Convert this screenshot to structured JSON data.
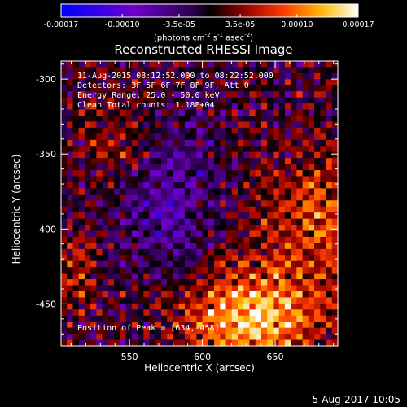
{
  "chart_data": {
    "type": "heatmap",
    "title": "Reconstructed RHESSI Image",
    "xlabel": "Heliocentric X (arcsec)",
    "ylabel": "Heliocentric Y (arcsec)",
    "xlim": [
      503,
      693
    ],
    "ylim": [
      -478,
      -288
    ],
    "x_ticks": [
      "550",
      "600",
      "650"
    ],
    "x_tick_values": [
      550,
      600,
      650
    ],
    "y_ticks": [
      "-300",
      "-350",
      "-400",
      "-450"
    ],
    "y_tick_values": [
      -300,
      -350,
      -400,
      -450
    ],
    "colorbar": {
      "ticks": [
        "-0.00017",
        "-0.00010",
        "-3.5e-05",
        "3.5e-05",
        "0.00010",
        "0.00017"
      ],
      "tick_values": [
        -0.00017,
        -0.0001,
        -3.5e-05,
        3.5e-05,
        0.0001,
        0.00017
      ],
      "range": [
        -0.00017,
        0.00017
      ],
      "units_prefix": "(photons cm",
      "units_exp1": "-2",
      "units_mid1": " s",
      "units_exp2": "-1",
      "units_mid2": " asec",
      "units_exp3": "-2",
      "units_suffix": ")"
    },
    "annotations": {
      "time_range": "11-Aug-2015 08:12:52.000 to 08:22:52.000",
      "detectors": "Detectors: 3F 5F 6F 7F 8F 9F, Att 0",
      "energy": "Energy Range: 25.0 - 50.0 keV",
      "clean": "Clean     Total counts: 1.18E+04",
      "peak": "Position of Peak = [634,-458]"
    },
    "peak": [
      634,
      -458
    ]
  },
  "footer": {
    "date": "5-Aug-2017 10:05"
  }
}
